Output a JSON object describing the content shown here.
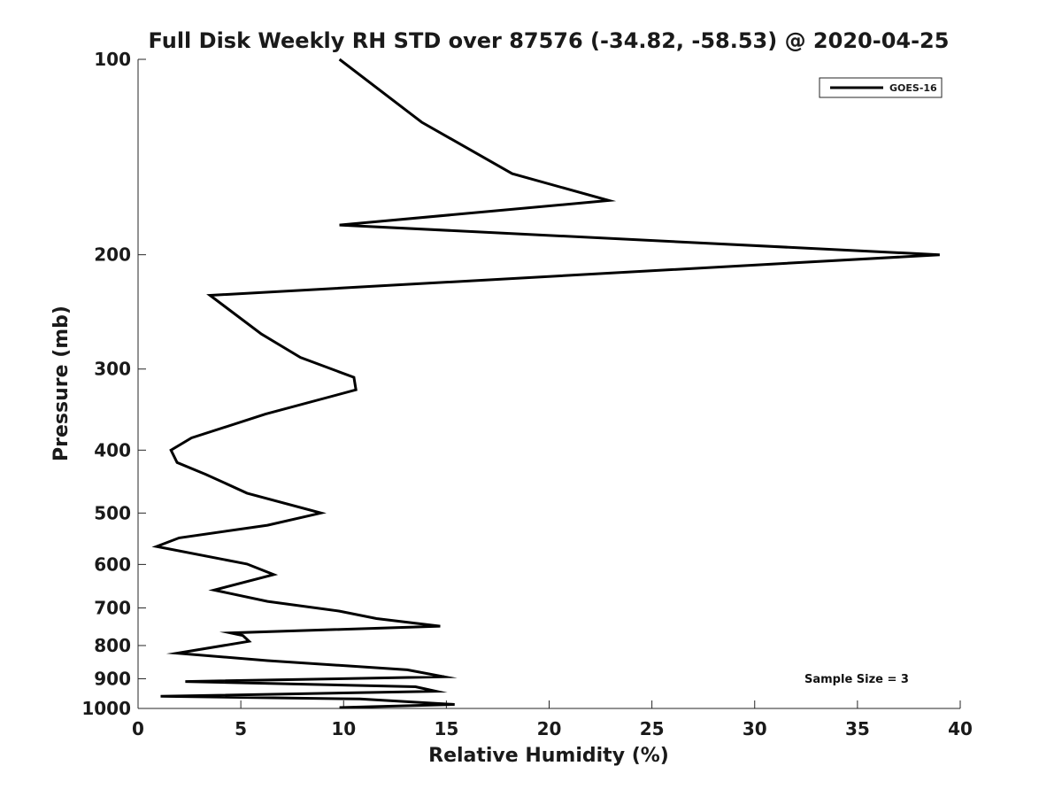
{
  "chart_data": {
    "type": "line",
    "title": "Full Disk Weekly RH STD over 87576 (-34.82, -58.53) @ 2020-04-25",
    "xlabel": "Relative Humidity (%)",
    "ylabel": "Pressure (mb)",
    "xlim": [
      0,
      40
    ],
    "ylim": [
      100,
      1000
    ],
    "yscale": "log",
    "y_reversed": true,
    "grid": false,
    "x_ticks": [
      0,
      5,
      10,
      15,
      20,
      25,
      30,
      35,
      40
    ],
    "y_ticks": [
      100,
      200,
      300,
      400,
      500,
      600,
      700,
      800,
      900,
      1000
    ],
    "legend": {
      "position": "top-right",
      "entries": [
        "GOES-16"
      ]
    },
    "annotation": "Sample Size = 3",
    "series": [
      {
        "name": "GOES-16",
        "color": "#000000",
        "x": [
          9.8,
          13.8,
          18.2,
          22.9,
          9.8,
          39.0,
          3.5,
          6.0,
          7.9,
          10.5,
          10.6,
          6.2,
          2.6,
          1.6,
          1.9,
          3.3,
          5.3,
          8.9,
          6.3,
          2.0,
          0.9,
          5.3,
          6.6,
          3.7,
          6.3,
          9.8,
          11.6,
          14.7,
          4.5,
          5.1,
          5.4,
          1.9,
          6.3,
          13.1,
          14.9,
          2.3,
          13.5,
          14.5,
          1.1,
          10.8,
          15.4,
          9.8
        ],
        "y": [
          100,
          125,
          150,
          165,
          180,
          200,
          231,
          265,
          288,
          309,
          323,
          352,
          383,
          400,
          418,
          436,
          466,
          500,
          522,
          546,
          563,
          599,
          622,
          657,
          684,
          708,
          727,
          747,
          765,
          772,
          788,
          822,
          844,
          872,
          894,
          909,
          926,
          941,
          958,
          967,
          986,
          997
        ]
      }
    ]
  }
}
